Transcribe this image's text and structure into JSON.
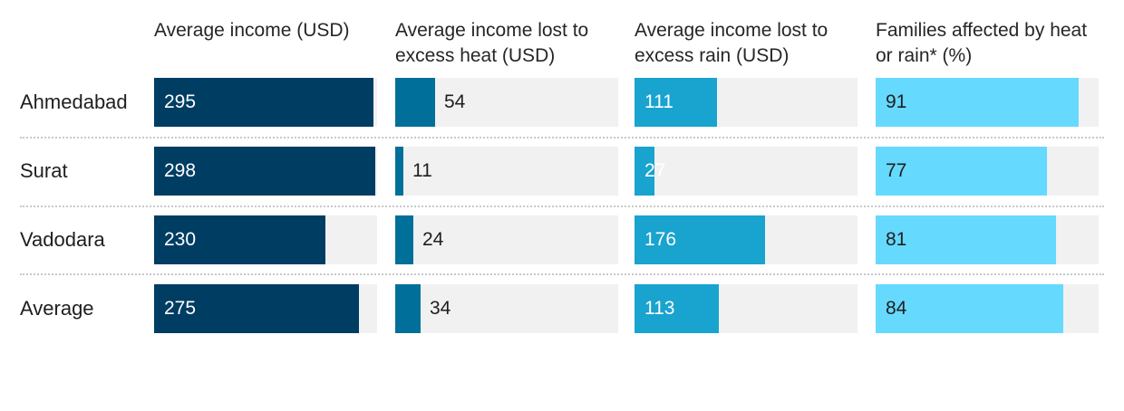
{
  "chart_data": {
    "type": "table",
    "categories": [
      "Ahmedabad",
      "Surat",
      "Vadodara",
      "Average"
    ],
    "columns": [
      {
        "label": "Average income (USD)",
        "color": "#003d63",
        "max": 300,
        "label_inside": true,
        "label_color": "#ffffff",
        "values": [
          295,
          298,
          230,
          275
        ]
      },
      {
        "label": "Average income lost to excess heat (USD)",
        "color": "#006f99",
        "max": 300,
        "label_inside": false,
        "label_color": "#1f1f1f",
        "values": [
          54,
          11,
          24,
          34
        ]
      },
      {
        "label": "Average income lost to excess rain (USD)",
        "color": "#19a3cf",
        "max": 300,
        "label_inside": true,
        "label_color": "#ffffff",
        "values": [
          111,
          27,
          176,
          113
        ]
      },
      {
        "label": "Families affected by heat or rain* (%)",
        "color": "#66d9ff",
        "max": 100,
        "label_inside": true,
        "label_color": "#1f1f1f",
        "values": [
          91,
          77,
          81,
          84
        ]
      }
    ]
  }
}
